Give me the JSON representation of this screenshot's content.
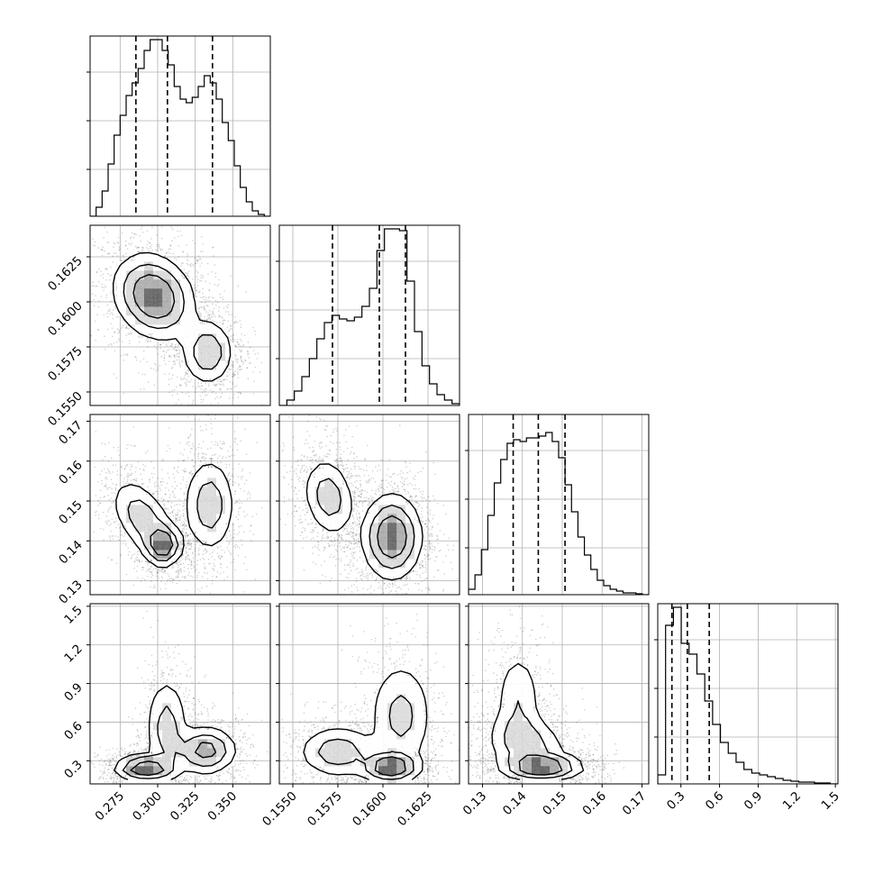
{
  "chart_data": {
    "type": "corner",
    "title": "",
    "parameters": [
      {
        "name": "",
        "range": [
          0.255,
          0.375
        ],
        "ticks": [
          0.275,
          0.3,
          0.325,
          0.35
        ],
        "tick_labels": [
          "0.275",
          "0.300",
          "0.325",
          "0.350"
        ],
        "quantiles": [
          0.2855,
          0.3065,
          0.3365
        ]
      },
      {
        "name": "",
        "range": [
          0.15425,
          0.16425
        ],
        "ticks": [
          0.155,
          0.1575,
          0.16,
          0.1625
        ],
        "tick_labels": [
          "0.1550",
          "0.1575",
          "0.1600",
          "0.1625"
        ],
        "quantiles": [
          0.1572,
          0.1598,
          0.16125
        ]
      },
      {
        "name": "",
        "range": [
          0.1265,
          0.1717
        ],
        "ticks": [
          0.13,
          0.14,
          0.15,
          0.16,
          0.17
        ],
        "tick_labels": [
          "0.13",
          "0.14",
          "0.15",
          "0.16",
          "0.17"
        ],
        "quantiles": [
          0.1377,
          0.144,
          0.1507
        ]
      },
      {
        "name": "",
        "range": [
          0.12,
          1.52
        ],
        "ticks": [
          0.3,
          0.6,
          0.9,
          1.2,
          1.5
        ],
        "tick_labels": [
          "0.3",
          "0.6",
          "0.9",
          "1.2",
          "1.5"
        ],
        "quantiles": [
          0.23,
          0.35,
          0.52
        ]
      }
    ],
    "histograms": [
      {
        "param": 0,
        "counts": [
          0,
          0.05,
          0.14,
          0.29,
          0.45,
          0.56,
          0.67,
          0.74,
          0.82,
          0.92,
          0.98,
          0.98,
          0.92,
          0.84,
          0.72,
          0.65,
          0.63,
          0.66,
          0.72,
          0.78,
          0.74,
          0.65,
          0.52,
          0.42,
          0.28,
          0.16,
          0.08,
          0.03,
          0.01,
          0
        ]
      },
      {
        "param": 1,
        "counts": [
          0,
          0.03,
          0.08,
          0.16,
          0.26,
          0.37,
          0.46,
          0.5,
          0.48,
          0.47,
          0.49,
          0.55,
          0.65,
          0.86,
          0.98,
          0.98,
          0.97,
          0.69,
          0.41,
          0.22,
          0.12,
          0.06,
          0.03,
          0.01
        ]
      },
      {
        "param": 2,
        "counts": [
          0.03,
          0.11,
          0.25,
          0.44,
          0.62,
          0.75,
          0.84,
          0.86,
          0.85,
          0.87,
          0.87,
          0.88,
          0.9,
          0.85,
          0.76,
          0.61,
          0.46,
          0.32,
          0.22,
          0.14,
          0.08,
          0.05,
          0.03,
          0.02,
          0.01,
          0.01,
          0.005,
          0
        ]
      },
      {
        "param": 3,
        "counts": [
          0.05,
          0.88,
          0.98,
          0.78,
          0.72,
          0.61,
          0.46,
          0.33,
          0.23,
          0.17,
          0.12,
          0.08,
          0.06,
          0.05,
          0.04,
          0.03,
          0.02,
          0.015,
          0.01,
          0.01,
          0.005,
          0.005,
          0
        ]
      }
    ],
    "pairs": [
      {
        "x": 0,
        "y": 1,
        "modes": [
          {
            "cx": 0.2975,
            "cy": 0.1603,
            "sx": 0.013,
            "sy": 0.00115,
            "rho": -0.2,
            "w": 1.0,
            "peak": 1.0
          },
          {
            "cx": 0.3333,
            "cy": 0.1572,
            "sx": 0.0085,
            "sy": 0.0009,
            "rho": 0.0,
            "w": 0.65,
            "peak": 0.55
          }
        ]
      },
      {
        "x": 0,
        "y": 2,
        "modes": [
          {
            "cx": 0.2905,
            "cy": 0.1455,
            "sx": 0.0105,
            "sy": 0.005,
            "rho": -0.5,
            "w": 0.55,
            "peak": 0.55
          },
          {
            "cx": 0.3035,
            "cy": 0.139,
            "sx": 0.006,
            "sy": 0.0025,
            "rho": 0.0,
            "w": 0.55,
            "peak": 1.0
          },
          {
            "cx": 0.3345,
            "cy": 0.149,
            "sx": 0.0085,
            "sy": 0.006,
            "rho": 0.0,
            "w": 0.6,
            "peak": 0.55
          }
        ]
      },
      {
        "x": 1,
        "y": 2,
        "modes": [
          {
            "cx": 0.157,
            "cy": 0.151,
            "sx": 0.0007,
            "sy": 0.005,
            "rho": -0.2,
            "w": 0.55,
            "peak": 0.5
          },
          {
            "cx": 0.1605,
            "cy": 0.141,
            "sx": 0.0008,
            "sy": 0.0052,
            "rho": 0.0,
            "w": 0.85,
            "peak": 1.0
          }
        ]
      },
      {
        "x": 0,
        "y": 3,
        "modes": [
          {
            "cx": 0.292,
            "cy": 0.24,
            "sx": 0.01,
            "sy": 0.05,
            "rho": 0.0,
            "w": 0.75,
            "peak": 1.0
          },
          {
            "cx": 0.306,
            "cy": 0.55,
            "sx": 0.007,
            "sy": 0.2,
            "rho": 0.0,
            "w": 0.35,
            "peak": 0.45
          },
          {
            "cx": 0.332,
            "cy": 0.38,
            "sx": 0.01,
            "sy": 0.09,
            "rho": 0.0,
            "w": 0.6,
            "peak": 0.75
          }
        ]
      },
      {
        "x": 1,
        "y": 3,
        "modes": [
          {
            "cx": 0.1575,
            "cy": 0.37,
            "sx": 0.0011,
            "sy": 0.1,
            "rho": 0.0,
            "w": 0.55,
            "peak": 0.5
          },
          {
            "cx": 0.1604,
            "cy": 0.25,
            "sx": 0.0008,
            "sy": 0.06,
            "rho": 0.0,
            "w": 0.75,
            "peak": 1.0
          },
          {
            "cx": 0.161,
            "cy": 0.65,
            "sx": 0.0009,
            "sy": 0.22,
            "rho": 0.0,
            "w": 0.35,
            "peak": 0.4
          }
        ]
      },
      {
        "x": 2,
        "y": 3,
        "modes": [
          {
            "cx": 0.141,
            "cy": 0.43,
            "sx": 0.005,
            "sy": 0.12,
            "rho": -0.2,
            "w": 0.6,
            "peak": 0.45
          },
          {
            "cx": 0.145,
            "cy": 0.25,
            "sx": 0.005,
            "sy": 0.05,
            "rho": 0.0,
            "w": 0.8,
            "peak": 1.0
          },
          {
            "cx": 0.139,
            "cy": 0.75,
            "sx": 0.003,
            "sy": 0.22,
            "rho": 0.0,
            "w": 0.3,
            "peak": 0.3
          }
        ]
      }
    ],
    "grid": true,
    "legend": "none"
  }
}
